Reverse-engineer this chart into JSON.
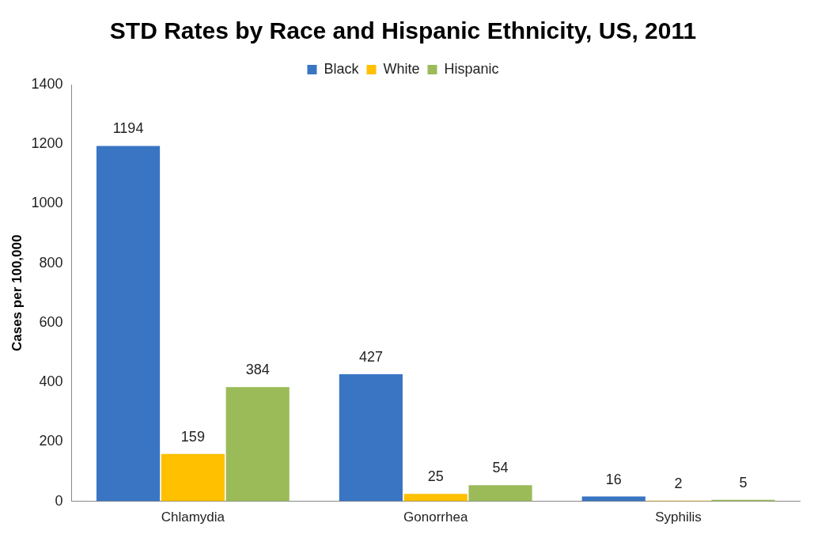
{
  "chart_data": {
    "type": "bar",
    "title": "STD Rates by Race and Hispanic Ethnicity, US, 2011",
    "ylabel": "Cases per 100,000",
    "categories": [
      "Chlamydia",
      "Gonorrhea",
      "Syphilis"
    ],
    "series": [
      {
        "name": "Black",
        "color": "#3a75c4",
        "values": [
          1194,
          427,
          16
        ]
      },
      {
        "name": "White",
        "color": "#ffc000",
        "values": [
          159,
          25,
          2
        ]
      },
      {
        "name": "Hispanic",
        "color": "#9bbb59",
        "values": [
          384,
          54,
          5
        ]
      }
    ],
    "ylim": [
      0,
      1400
    ],
    "yticks": [
      0,
      200,
      400,
      600,
      800,
      1000,
      1200,
      1400
    ],
    "grid": false,
    "legend": "top",
    "data_labels": true
  }
}
